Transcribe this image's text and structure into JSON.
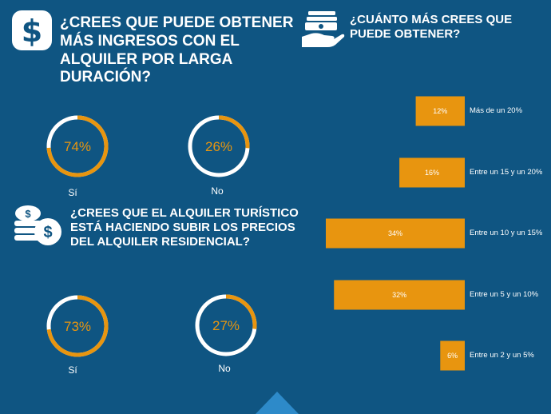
{
  "colors": {
    "background": "#0f5582",
    "accent": "#e8950f",
    "ring_track": "#ffffff"
  },
  "icons": {
    "q1": "dollar-icon",
    "q2": "coin-stack-icon",
    "q3": "hand-money-icon"
  },
  "question1": {
    "title": "¿CREES QUE PUEDE OBTENER MÁS INGRESOS CON EL ALQUILER POR LARGA DURACIÓN?"
  },
  "question2": {
    "title": "¿CREES QUE EL ALQUILER TURÍSTICO ESTÁ HACIENDO SUBIR LOS PRECIOS DEL ALQUILER RESIDENCIAL?"
  },
  "question3": {
    "title": "¿CUÁNTO MÁS CREES QUE PUEDE OBTENER?"
  },
  "chart_data": [
    {
      "type": "pie",
      "title": "¿CREES QUE PUEDE OBTENER MÁS INGRESOS CON EL ALQUILER POR LARGA DURACIÓN?",
      "categories": [
        "Sí",
        "No"
      ],
      "values": [
        74,
        26
      ],
      "value_labels": [
        "74%",
        "26%"
      ]
    },
    {
      "type": "pie",
      "title": "¿CREES QUE EL ALQUILER TURÍSTICO ESTÁ HACIENDO SUBIR LOS PRECIOS DEL ALQUILER RESIDENCIAL?",
      "categories": [
        "Sí",
        "No"
      ],
      "values": [
        73,
        27
      ],
      "value_labels": [
        "73%",
        "27%"
      ]
    },
    {
      "type": "bar",
      "orientation": "horizontal",
      "title": "¿CUÁNTO MÁS CREES QUE PUEDE OBTENER?",
      "categories": [
        "Más de un 20%",
        "Entre un 15 y un 20%",
        "Entre un 10 y un 15%",
        "Entre un 5 y un 10%",
        "Entre un 2 y un 5%"
      ],
      "values": [
        12,
        16,
        34,
        32,
        6
      ],
      "value_labels": [
        "12%",
        "16%",
        "34%",
        "32%",
        "6%"
      ],
      "grid": false
    }
  ]
}
